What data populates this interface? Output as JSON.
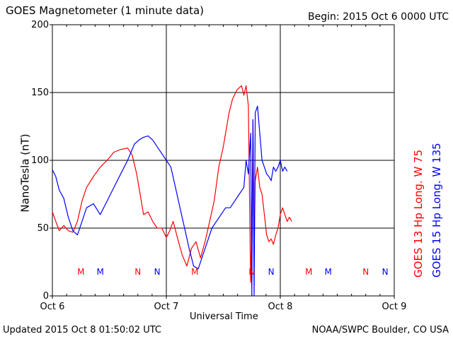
{
  "header": {
    "title": "GOES Magnetometer (1 minute data)",
    "begin": "Begin:  2015 Oct 6 0000 UTC"
  },
  "footer": {
    "updated": "Updated 2015 Oct  8 01:50:02 UTC",
    "credit": "NOAA/SWPC Boulder, CO USA"
  },
  "colors": {
    "goes13": "#ff0000",
    "goes15": "#0000ff",
    "axis": "#000000"
  },
  "chart_data": {
    "type": "line",
    "title": "GOES Magnetometer (1 minute data)",
    "xlabel": "Universal Time",
    "ylabel": "NanoTesla (nT)",
    "ylim": [
      0,
      200
    ],
    "yticks": [
      0,
      50,
      100,
      150,
      200
    ],
    "xlim": [
      0,
      3
    ],
    "xtick_labels": [
      "Oct 6",
      "Oct 7",
      "Oct 8",
      "Oct 9"
    ],
    "grid": true,
    "legend_position": "right",
    "series": [
      {
        "name": "GOES 13 Hp  Long. W 75",
        "color": "#ff0000",
        "x": [
          0.0,
          0.03,
          0.06,
          0.1,
          0.14,
          0.18,
          0.22,
          0.26,
          0.3,
          0.36,
          0.42,
          0.48,
          0.54,
          0.6,
          0.66,
          0.7,
          0.74,
          0.78,
          0.8,
          0.84,
          0.88,
          0.92,
          0.96,
          1.0,
          1.03,
          1.06,
          1.1,
          1.14,
          1.18,
          1.22,
          1.26,
          1.3,
          1.34,
          1.38,
          1.42,
          1.46,
          1.5,
          1.52,
          1.55,
          1.58,
          1.62,
          1.66,
          1.68,
          1.7,
          1.72,
          1.74,
          1.75,
          1.76,
          1.77,
          1.78,
          1.8,
          1.82,
          1.84,
          1.86,
          1.88,
          1.9,
          1.92,
          1.94,
          1.96,
          1.98,
          2.0,
          2.02,
          2.04,
          2.06,
          2.08,
          2.1
        ],
        "values": [
          62,
          55,
          48,
          52,
          48,
          47,
          55,
          70,
          80,
          88,
          95,
          100,
          106,
          108,
          109,
          104,
          90,
          70,
          60,
          62,
          55,
          50,
          50,
          43,
          48,
          55,
          42,
          30,
          22,
          35,
          40,
          28,
          40,
          55,
          70,
          95,
          110,
          120,
          135,
          145,
          152,
          155,
          148,
          155,
          140,
          10,
          45,
          130,
          30,
          85,
          95,
          80,
          75,
          60,
          45,
          40,
          42,
          38,
          45,
          50,
          60,
          65,
          60,
          55,
          58,
          55
        ]
      },
      {
        "name": "GOES 15 Hp  Long. W 135",
        "color": "#0000ff",
        "x": [
          0.0,
          0.03,
          0.06,
          0.1,
          0.14,
          0.18,
          0.22,
          0.26,
          0.3,
          0.36,
          0.42,
          0.48,
          0.54,
          0.6,
          0.66,
          0.72,
          0.76,
          0.8,
          0.84,
          0.88,
          0.92,
          0.96,
          1.0,
          1.04,
          1.08,
          1.12,
          1.16,
          1.2,
          1.24,
          1.28,
          1.32,
          1.36,
          1.4,
          1.44,
          1.48,
          1.52,
          1.56,
          1.6,
          1.64,
          1.68,
          1.7,
          1.72,
          1.74,
          1.75,
          1.76,
          1.77,
          1.78,
          1.8,
          1.82,
          1.84,
          1.86,
          1.88,
          1.9,
          1.92,
          1.94,
          1.96,
          1.98,
          2.0,
          2.02,
          2.04,
          2.06
        ],
        "values": [
          93,
          88,
          78,
          72,
          58,
          48,
          45,
          55,
          65,
          68,
          60,
          70,
          80,
          90,
          100,
          112,
          115,
          117,
          118,
          115,
          110,
          105,
          100,
          95,
          80,
          65,
          50,
          35,
          22,
          20,
          30,
          40,
          50,
          55,
          60,
          65,
          65,
          70,
          75,
          80,
          100,
          90,
          120,
          0,
          130,
          0,
          135,
          140,
          120,
          100,
          95,
          90,
          88,
          85,
          95,
          92,
          95,
          100,
          92,
          95,
          92
        ]
      }
    ],
    "annotations": [
      {
        "text": "M",
        "x": 0.25,
        "series": "GOES 13 Hp  Long. W 75"
      },
      {
        "text": "M",
        "x": 0.42,
        "series": "GOES 15 Hp  Long. W 135"
      },
      {
        "text": "N",
        "x": 0.75,
        "series": "GOES 13 Hp  Long. W 75"
      },
      {
        "text": "N",
        "x": 0.92,
        "series": "GOES 15 Hp  Long. W 135"
      },
      {
        "text": "M",
        "x": 1.25,
        "series": "GOES 13 Hp  Long. W 75"
      },
      {
        "text": "N",
        "x": 1.75,
        "series": "GOES 13 Hp  Long. W 75"
      },
      {
        "text": "N",
        "x": 1.92,
        "series": "GOES 15 Hp  Long. W 135"
      },
      {
        "text": "M",
        "x": 2.25,
        "series": "GOES 13 Hp  Long. W 75"
      },
      {
        "text": "M",
        "x": 2.42,
        "series": "GOES 15 Hp  Long. W 135"
      },
      {
        "text": "N",
        "x": 2.75,
        "series": "GOES 13 Hp  Long. W 75"
      },
      {
        "text": "N",
        "x": 2.92,
        "series": "GOES 15 Hp  Long. W 135"
      }
    ]
  }
}
